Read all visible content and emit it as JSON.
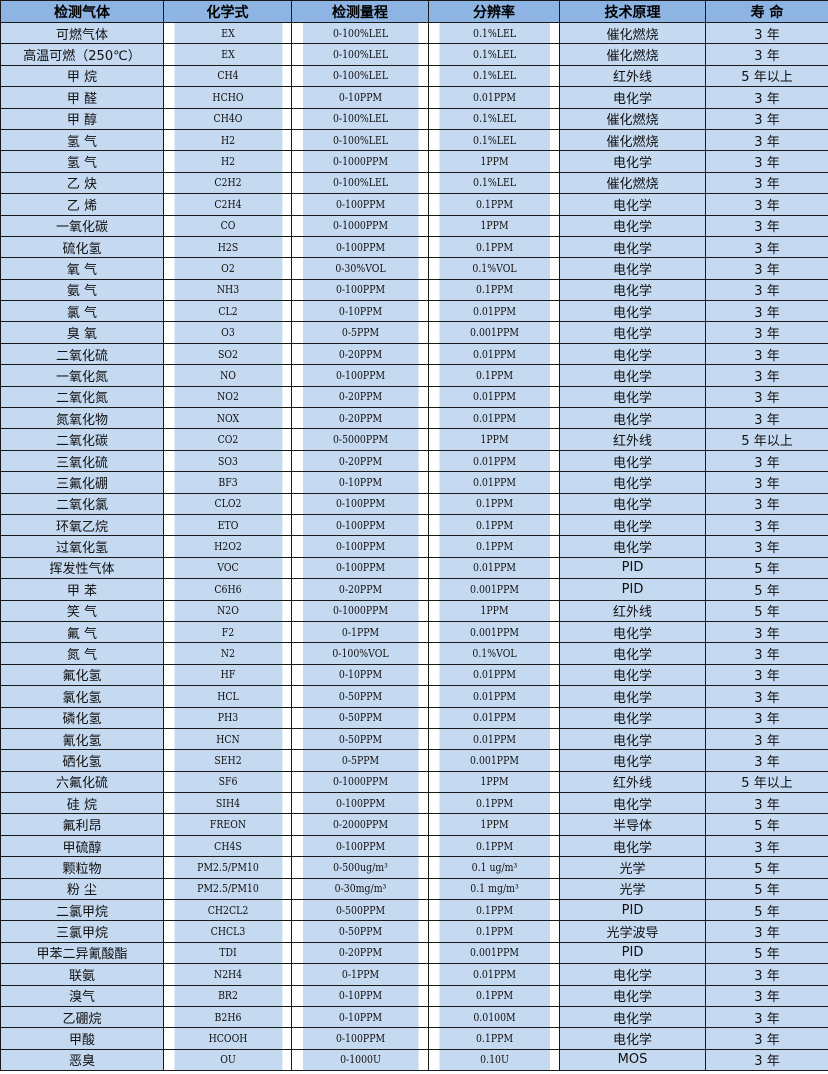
{
  "headers": [
    "检测气体",
    "化学式",
    "检测量程",
    "分辨率",
    "技术原理",
    "寿 命"
  ],
  "rows": [
    [
      "可燃气体",
      "EX",
      "0-100%LEL",
      "0.1%LEL",
      "催化燃烧",
      "3 年"
    ],
    [
      "高温可燃（250℃）",
      "EX",
      "0-100%LEL",
      "0.1%LEL",
      "催化燃烧",
      "3 年"
    ],
    [
      "甲 烷",
      "CH4",
      "0-100%LEL",
      "0.1%LEL",
      "红外线",
      "5 年以上"
    ],
    [
      "甲 醛",
      "HCHO",
      "0-10PPM",
      "0.01PPM",
      "电化学",
      "3 年"
    ],
    [
      "甲 醇",
      "CH4O",
      "0-100%LEL",
      "0.1%LEL",
      "催化燃烧",
      "3 年"
    ],
    [
      "氢 气",
      "H2",
      "0-100%LEL",
      "0.1%LEL",
      "催化燃烧",
      "3 年"
    ],
    [
      "氢 气",
      "H2",
      "0-1000PPM",
      "1PPM",
      "电化学",
      "3 年"
    ],
    [
      "乙 炔",
      "C2H2",
      "0-100%LEL",
      "0.1%LEL",
      "催化燃烧",
      "3 年"
    ],
    [
      "乙 烯",
      "C2H4",
      "0-100PPM",
      "0.1PPM",
      "电化学",
      "3 年"
    ],
    [
      "一氧化碳",
      "CO",
      "0-1000PPM",
      "1PPM",
      "电化学",
      "3 年"
    ],
    [
      "硫化氢",
      "H2S",
      "0-100PPM",
      "0.1PPM",
      "电化学",
      "3 年"
    ],
    [
      "氧 气",
      "O2",
      "0-30%VOL",
      "0.1%VOL",
      "电化学",
      "3 年"
    ],
    [
      "氨 气",
      "NH3",
      "0-100PPM",
      "0.1PPM",
      "电化学",
      "3 年"
    ],
    [
      "氯 气",
      "CL2",
      "0-10PPM",
      "0.01PPM",
      "电化学",
      "3 年"
    ],
    [
      "臭 氧",
      "O3",
      "0-5PPM",
      "0.001PPM",
      "电化学",
      "3 年"
    ],
    [
      "二氧化硫",
      "SO2",
      "0-20PPM",
      "0.01PPM",
      "电化学",
      "3 年"
    ],
    [
      "一氧化氮",
      "NO",
      "0-100PPM",
      "0.1PPM",
      "电化学",
      "3 年"
    ],
    [
      "二氧化氮",
      "NO2",
      "0-20PPM",
      "0.01PPM",
      "电化学",
      "3 年"
    ],
    [
      "氮氧化物",
      "NOX",
      "0-20PPM",
      "0.01PPM",
      "电化学",
      "3 年"
    ],
    [
      "二氧化碳",
      "CO2",
      "0-5000PPM",
      "1PPM",
      "红外线",
      "5 年以上"
    ],
    [
      "三氧化硫",
      "SO3",
      "0-20PPM",
      "0.01PPM",
      "电化学",
      "3 年"
    ],
    [
      "三氟化硼",
      "BF3",
      "0-10PPM",
      "0.01PPM",
      "电化学",
      "3 年"
    ],
    [
      "二氧化氯",
      "CLO2",
      "0-100PPM",
      "0.1PPM",
      "电化学",
      "3 年"
    ],
    [
      "环氧乙烷",
      "ETO",
      "0-100PPM",
      "0.1PPM",
      "电化学",
      "3 年"
    ],
    [
      "过氧化氢",
      "H2O2",
      "0-100PPM",
      "0.1PPM",
      "电化学",
      "3 年"
    ],
    [
      "挥发性气体",
      "VOC",
      "0-100PPM",
      "0.01PPM",
      "PID",
      "5 年"
    ],
    [
      "甲 苯",
      "C6H6",
      "0-20PPM",
      "0.001PPM",
      "PID",
      "5 年"
    ],
    [
      "笑 气",
      "N2O",
      "0-1000PPM",
      "1PPM",
      "红外线",
      "5 年"
    ],
    [
      "氟 气",
      "F2",
      "0-1PPM",
      "0.001PPM",
      "电化学",
      "3 年"
    ],
    [
      "氮 气",
      "N2",
      "0-100%VOL",
      "0.1%VOL",
      "电化学",
      "3 年"
    ],
    [
      "氟化氢",
      "HF",
      "0-10PPM",
      "0.01PPM",
      "电化学",
      "3 年"
    ],
    [
      "氯化氢",
      "HCL",
      "0-50PPM",
      "0.01PPM",
      "电化学",
      "3 年"
    ],
    [
      "磷化氢",
      "PH3",
      "0-50PPM",
      "0.01PPM",
      "电化学",
      "3 年"
    ],
    [
      "氰化氢",
      "HCN",
      "0-50PPM",
      "0.01PPM",
      "电化学",
      "3 年"
    ],
    [
      "硒化氢",
      "SEH2",
      "0-5PPM",
      "0.001PPM",
      "电化学",
      "3 年"
    ],
    [
      "六氟化硫",
      "SF6",
      "0-1000PPM",
      "1PPM",
      "红外线",
      "5 年以上"
    ],
    [
      "硅 烷",
      "SIH4",
      "0-100PPM",
      "0.1PPM",
      "电化学",
      "3 年"
    ],
    [
      "氟利昂",
      "FREON",
      "0-2000PPM",
      "1PPM",
      "半导体",
      "5 年"
    ],
    [
      "甲硫醇",
      "CH4S",
      "0-100PPM",
      "0.1PPM",
      "电化学",
      "3 年"
    ],
    [
      "颗粒物",
      "PM2.5/PM10",
      "0-500ug/m³",
      "0.1 ug/m³",
      "光学",
      "5 年"
    ],
    [
      "粉 尘",
      "PM2.5/PM10",
      "0-30mg/m³",
      "0.1 mg/m³",
      "光学",
      "5 年"
    ],
    [
      "二氯甲烷",
      "CH2CL2",
      "0-500PPM",
      "0.1PPM",
      "PID",
      "5 年"
    ],
    [
      "三氯甲烷",
      "CHCL3",
      "0-50PPM",
      "0.1PPM",
      "光学波导",
      "3 年"
    ],
    [
      "甲苯二异氰酸酯",
      "TDI",
      "0-20PPM",
      "0.001PPM",
      "PID",
      "5 年"
    ],
    [
      "联氨",
      "N2H4",
      "0-1PPM",
      "0.01PPM",
      "电化学",
      "3 年"
    ],
    [
      "溴气",
      "BR2",
      "0-10PPM",
      "0.1PPM",
      "电化学",
      "3 年"
    ],
    [
      "乙硼烷",
      "B2H6",
      "0-10PPM",
      "0.0100M",
      "电化学",
      "3 年"
    ],
    [
      "甲酸",
      "HCOOH",
      "0-100PPM",
      "0.1PPM",
      "电化学",
      "3 年"
    ],
    [
      "恶臭",
      "OU",
      "0-1000U",
      "0.10U",
      "MOS",
      "3 年"
    ]
  ],
  "colors": {
    "header_bg": "#8db4e2",
    "row_bg": "#c5d9f1",
    "border": "#1a1a1a"
  }
}
